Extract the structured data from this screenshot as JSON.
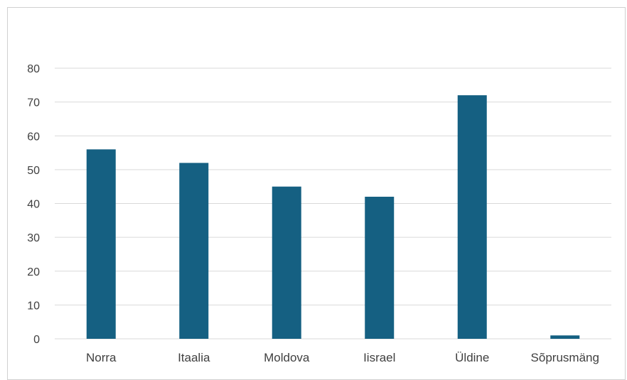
{
  "chart_data": {
    "type": "bar",
    "title": "",
    "xlabel": "",
    "ylabel": "",
    "categories": [
      "Norra",
      "Itaalia",
      "Moldova",
      "Iisrael",
      "Üldine",
      "Sõprusmäng"
    ],
    "values": [
      56,
      52,
      45,
      42,
      72,
      1
    ],
    "ylim": [
      0,
      80
    ],
    "yticks": [
      0,
      10,
      20,
      30,
      40,
      50,
      60,
      70,
      80
    ],
    "grid": true,
    "legend": "none",
    "colors": {
      "bar": "#156082",
      "grid": "#d9d9d9",
      "text": "#404040"
    }
  }
}
